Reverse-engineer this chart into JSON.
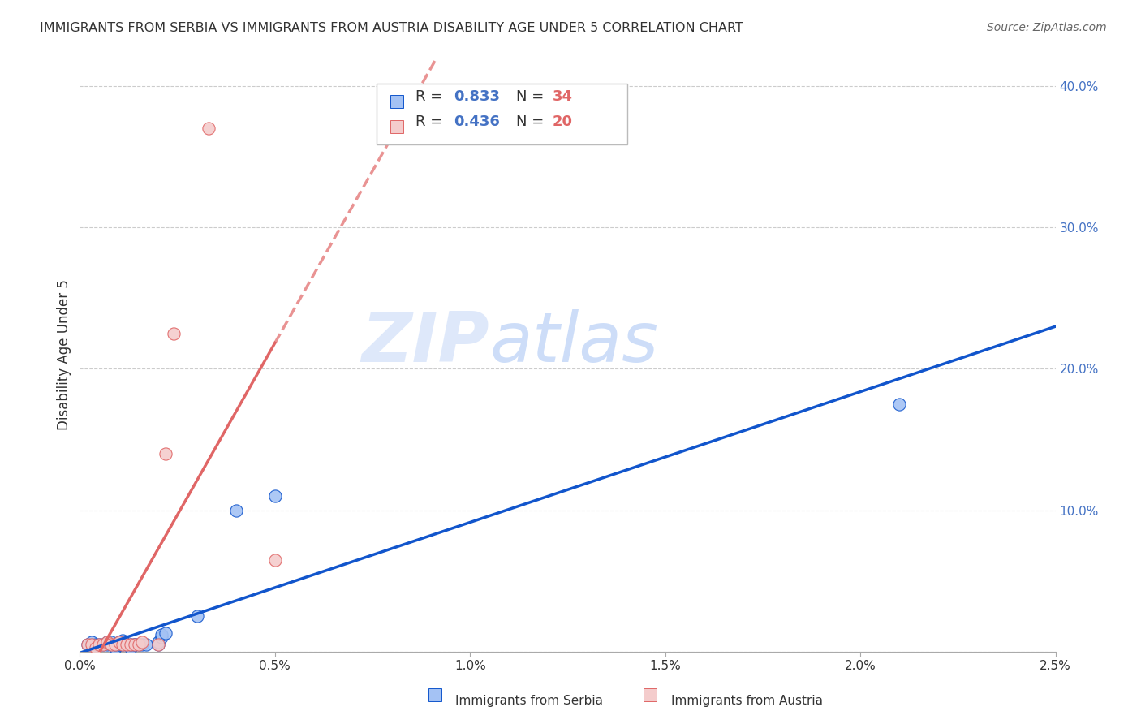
{
  "title": "IMMIGRANTS FROM SERBIA VS IMMIGRANTS FROM AUSTRIA DISABILITY AGE UNDER 5 CORRELATION CHART",
  "source": "Source: ZipAtlas.com",
  "ylabel": "Disability Age Under 5",
  "serbia_R": 0.833,
  "serbia_N": 34,
  "austria_R": 0.436,
  "austria_N": 20,
  "serbia_color": "#a4c2f4",
  "austria_color": "#f4cccc",
  "serbia_line_color": "#1155cc",
  "austria_line_color": "#e06666",
  "serbia_x": [
    0.0002,
    0.0003,
    0.0003,
    0.0004,
    0.0005,
    0.0006,
    0.0007,
    0.0007,
    0.0008,
    0.0008,
    0.0009,
    0.0009,
    0.001,
    0.001,
    0.001,
    0.0011,
    0.0011,
    0.0012,
    0.0013,
    0.0013,
    0.0014,
    0.0014,
    0.0015,
    0.0016,
    0.0017,
    0.002,
    0.002,
    0.0021,
    0.0021,
    0.0022,
    0.003,
    0.004,
    0.005,
    0.021
  ],
  "serbia_y": [
    0.005,
    0.005,
    0.007,
    0.005,
    0.005,
    0.005,
    0.005,
    0.007,
    0.005,
    0.007,
    0.003,
    0.005,
    0.005,
    0.005,
    0.007,
    0.005,
    0.008,
    0.005,
    0.003,
    0.005,
    0.005,
    0.005,
    0.005,
    0.005,
    0.005,
    0.005,
    0.007,
    0.01,
    0.012,
    0.013,
    0.025,
    0.1,
    0.11,
    0.175
  ],
  "austria_x": [
    0.0002,
    0.0003,
    0.0004,
    0.0005,
    0.0006,
    0.0007,
    0.0008,
    0.0009,
    0.001,
    0.0011,
    0.0012,
    0.0013,
    0.0014,
    0.0015,
    0.0016,
    0.002,
    0.0022,
    0.0024,
    0.0033,
    0.005
  ],
  "austria_y": [
    0.005,
    0.005,
    0.003,
    0.005,
    0.005,
    0.007,
    0.005,
    0.005,
    0.007,
    0.005,
    0.005,
    0.005,
    0.005,
    0.005,
    0.007,
    0.005,
    0.14,
    0.225,
    0.37,
    0.065
  ],
  "xlim": [
    0.0,
    0.025
  ],
  "ylim": [
    0.0,
    0.42
  ],
  "right_yticks": [
    0.0,
    0.1,
    0.2,
    0.3,
    0.4
  ],
  "right_yticklabels": [
    "",
    "10.0%",
    "20.0%",
    "30.0%",
    "40.0%"
  ],
  "xticklabels": [
    "0.0%",
    "0.5%",
    "1.0%",
    "1.5%",
    "2.0%",
    "2.5%"
  ],
  "xticks": [
    0.0,
    0.005,
    0.01,
    0.015,
    0.02,
    0.025
  ],
  "watermark_zip": "ZIP",
  "watermark_atlas": "atlas",
  "background_color": "#ffffff",
  "grid_color": "#cccccc",
  "title_color": "#333333",
  "source_color": "#666666",
  "axis_label_color": "#333333",
  "right_tick_color": "#4472c4",
  "legend_r_color": "#4472c4",
  "legend_n_color": "#e06666",
  "bottom_legend_serbia": "Immigrants from Serbia",
  "bottom_legend_austria": "Immigrants from Austria"
}
